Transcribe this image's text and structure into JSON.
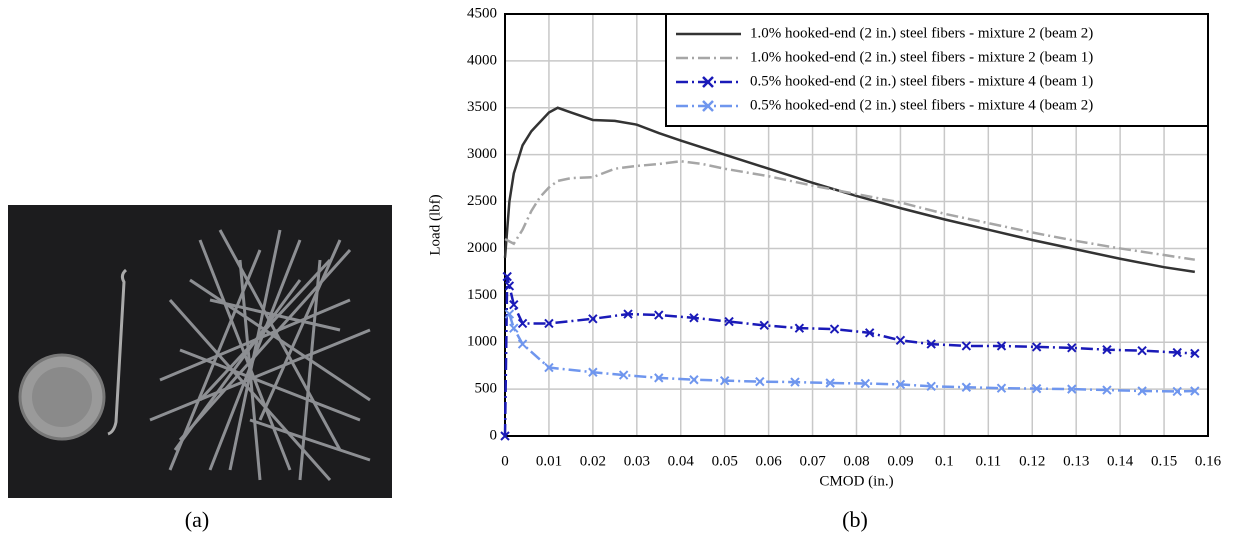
{
  "chart_data": {
    "type": "line",
    "xlabel": "CMOD (in.)",
    "ylabel": "Load (lbf)",
    "xlim": [
      0,
      0.16
    ],
    "ylim": [
      0,
      4500
    ],
    "xticks": [
      0,
      0.01,
      0.02,
      0.03,
      0.04,
      0.05,
      0.06,
      0.07,
      0.08,
      0.09,
      0.1,
      0.11,
      0.12,
      0.13,
      0.14,
      0.15,
      0.16
    ],
    "yticks": [
      0,
      500,
      1000,
      1500,
      2000,
      2500,
      3000,
      3500,
      4000,
      4500
    ],
    "grid": true,
    "legend": "upper right",
    "series": [
      {
        "name": "1.0% hooked-end (2 in.) steel fibers - mixture 2 (beam 2)",
        "color": "#333333",
        "dash": "solid",
        "marker": "none",
        "x": [
          0,
          0.001,
          0.002,
          0.004,
          0.006,
          0.008,
          0.01,
          0.012,
          0.015,
          0.02,
          0.025,
          0.03,
          0.035,
          0.04,
          0.05,
          0.06,
          0.07,
          0.08,
          0.09,
          0.1,
          0.11,
          0.12,
          0.13,
          0.14,
          0.15,
          0.157
        ],
        "values": [
          1900,
          2500,
          2800,
          3100,
          3250,
          3350,
          3450,
          3500,
          3450,
          3370,
          3360,
          3320,
          3230,
          3150,
          3000,
          2850,
          2700,
          2560,
          2430,
          2310,
          2200,
          2090,
          1990,
          1890,
          1800,
          1750
        ]
      },
      {
        "name": "1.0% hooked-end (2 in.) steel fibers - mixture 2 (beam 1)",
        "color": "#a6a6a6",
        "dash": "dashdot",
        "marker": "none",
        "x": [
          0,
          0.002,
          0.004,
          0.006,
          0.008,
          0.01,
          0.012,
          0.015,
          0.02,
          0.025,
          0.03,
          0.035,
          0.04,
          0.045,
          0.05,
          0.06,
          0.07,
          0.08,
          0.09,
          0.1,
          0.11,
          0.12,
          0.13,
          0.14,
          0.15,
          0.157
        ],
        "values": [
          2100,
          2050,
          2200,
          2400,
          2550,
          2650,
          2720,
          2750,
          2760,
          2850,
          2880,
          2900,
          2930,
          2900,
          2850,
          2770,
          2670,
          2580,
          2490,
          2370,
          2270,
          2170,
          2080,
          2000,
          1930,
          1880
        ]
      },
      {
        "name": "0.5% hooked-end (2 in.) steel fibers - mixture 4 (beam 1)",
        "color": "#1a1ab8",
        "dash": "dashdot",
        "marker": "x",
        "x": [
          0,
          0.0005,
          0.001,
          0.002,
          0.004,
          0.01,
          0.02,
          0.028,
          0.035,
          0.043,
          0.051,
          0.059,
          0.067,
          0.075,
          0.083,
          0.09,
          0.097,
          0.105,
          0.113,
          0.121,
          0.129,
          0.137,
          0.145,
          0.153,
          0.157
        ],
        "values": [
          0,
          1700,
          1600,
          1400,
          1200,
          1200,
          1250,
          1300,
          1290,
          1260,
          1220,
          1180,
          1150,
          1140,
          1100,
          1020,
          980,
          960,
          960,
          950,
          940,
          920,
          910,
          890,
          880
        ]
      },
      {
        "name": "0.5% hooked-end (2 in.) steel fibers - mixture 4 (beam 2)",
        "color": "#6f96ee",
        "dash": "dashdot",
        "marker": "x",
        "x": [
          0.001,
          0.002,
          0.004,
          0.01,
          0.02,
          0.027,
          0.035,
          0.043,
          0.05,
          0.058,
          0.066,
          0.074,
          0.082,
          0.09,
          0.097,
          0.105,
          0.113,
          0.121,
          0.129,
          0.137,
          0.145,
          0.153,
          0.157
        ],
        "values": [
          1300,
          1150,
          980,
          730,
          680,
          650,
          620,
          600,
          590,
          580,
          575,
          565,
          560,
          550,
          530,
          520,
          510,
          505,
          500,
          490,
          480,
          475,
          480
        ]
      }
    ]
  },
  "panel_labels": [
    "(a)",
    "(b)"
  ]
}
